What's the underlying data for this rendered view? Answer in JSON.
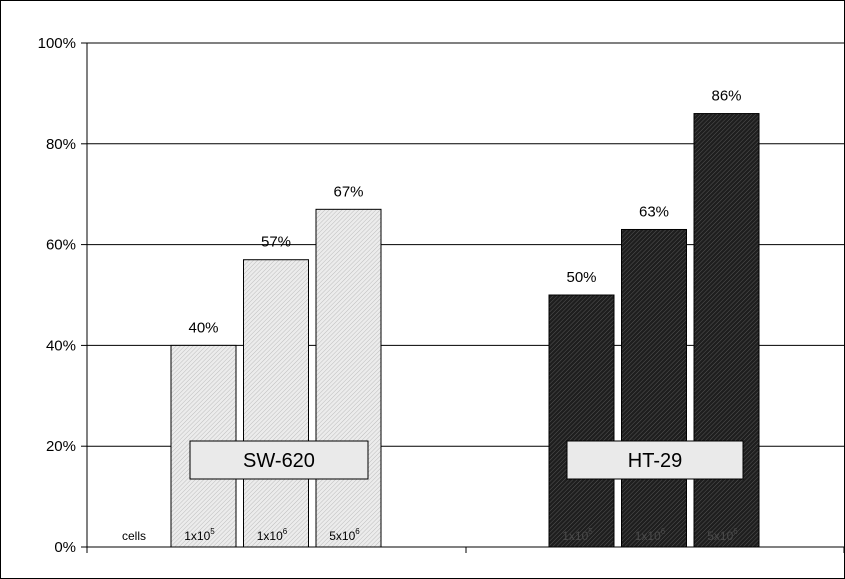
{
  "chart_data": {
    "type": "bar",
    "title": "",
    "xlabel": "",
    "ylabel": "",
    "ylim": [
      0,
      100
    ],
    "y_ticks": [
      "0%",
      "20%",
      "40%",
      "60%",
      "80%",
      "100%"
    ],
    "grid": true,
    "cells_label": "cells",
    "groups": [
      {
        "name": "SW-620",
        "color": "#e6e6e6",
        "text_color": "#000000",
        "bars": [
          {
            "condition_base": "1x10",
            "condition_exp": "5",
            "value": 40,
            "label": "40%"
          },
          {
            "condition_base": "1x10",
            "condition_exp": "6",
            "value": 57,
            "label": "57%"
          },
          {
            "condition_base": "5x10",
            "condition_exp": "6",
            "value": 67,
            "label": "67%"
          }
        ]
      },
      {
        "name": "HT-29",
        "color": "#2a2a2a",
        "text_color": "#4a4a4a",
        "bars": [
          {
            "condition_base": "1x10",
            "condition_exp": "5",
            "value": 50,
            "label": "50%"
          },
          {
            "condition_base": "1x10",
            "condition_exp": "6",
            "value": 63,
            "label": "63%"
          },
          {
            "condition_base": "5x10",
            "condition_exp": "6",
            "value": 86,
            "label": "86%"
          }
        ]
      }
    ]
  }
}
